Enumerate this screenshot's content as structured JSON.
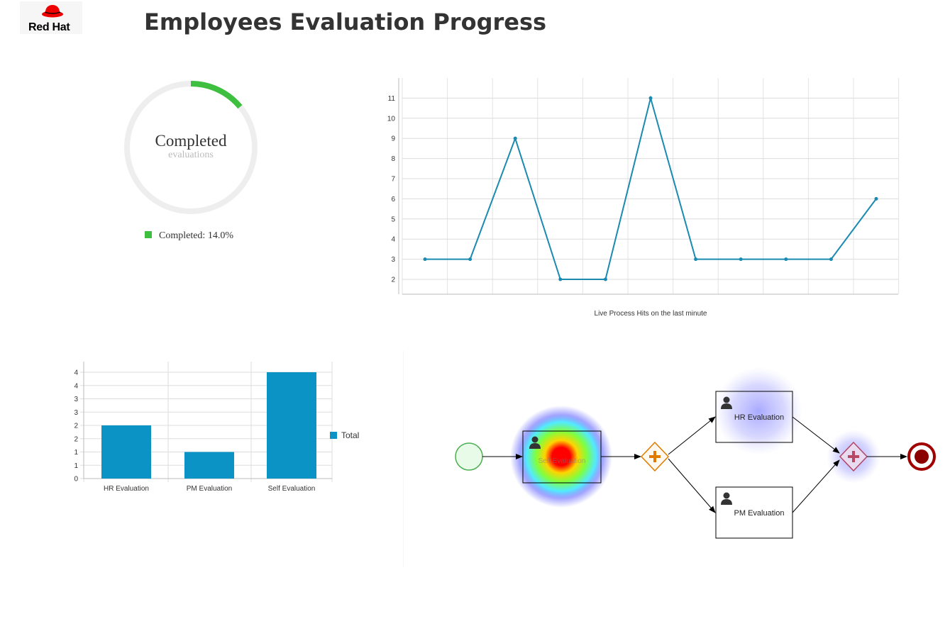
{
  "header": {
    "logo_text": "Red Hat",
    "title": "Employees Evaluation Progress"
  },
  "colors": {
    "progress": "#3fbf3f",
    "track": "#eeeeee",
    "line": "#1a8ab0",
    "bar": "#0b93c5"
  },
  "donut": {
    "label": "Completed",
    "sublabel": "evaluations",
    "legend": "Completed: 14.0%",
    "percent": 14.0
  },
  "chart_data": [
    {
      "type": "line",
      "title": "Live Process Hits on the last minute",
      "values": [
        3,
        3,
        9,
        2,
        2,
        11,
        3,
        3,
        3,
        3,
        6
      ],
      "yticks": [
        2,
        3,
        4,
        5,
        6,
        7,
        8,
        9,
        10,
        11
      ],
      "ylim": [
        1.1,
        12
      ],
      "grid": true
    },
    {
      "type": "bar",
      "categories": [
        "HR Evaluation",
        "PM Evaluation",
        "Self Evaluation"
      ],
      "values": [
        2,
        1,
        4
      ],
      "ytick_labels": [
        "0",
        "1",
        "1",
        "2",
        "2",
        "3",
        "3",
        "4",
        "4"
      ],
      "ylim": [
        0,
        4
      ],
      "legend": "Total",
      "legend_position": "right"
    }
  ],
  "process": {
    "task1_label": "Self Evaluation",
    "task2_label": "HR Evaluation",
    "task3_label": "PM Evaluation"
  }
}
